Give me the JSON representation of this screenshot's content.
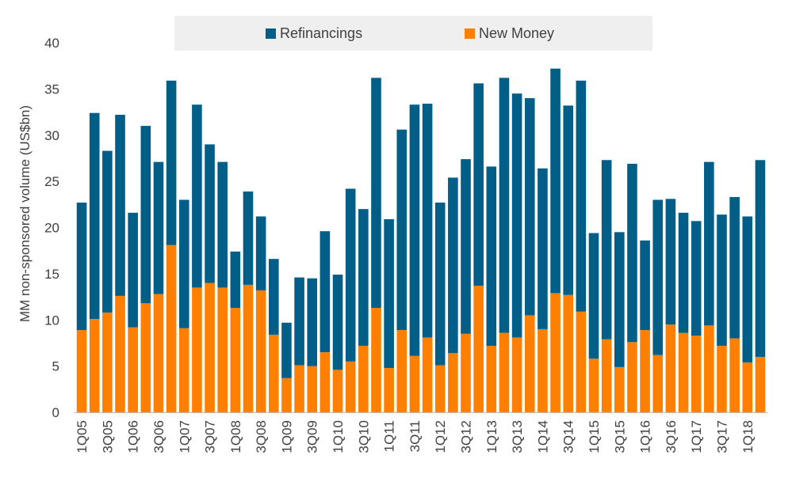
{
  "chart_data": {
    "type": "bar",
    "stacked": true,
    "ylabel": "MM  non-sponsored volume (US$bn)",
    "ylim": [
      0,
      40
    ],
    "yticks": [
      0,
      5,
      10,
      15,
      20,
      25,
      30,
      35,
      40
    ],
    "grid": false,
    "legend_position": "top",
    "categories": [
      "1Q05",
      "2Q05",
      "3Q05",
      "4Q05",
      "1Q06",
      "2Q06",
      "3Q06",
      "4Q06",
      "1Q07",
      "2Q07",
      "3Q07",
      "4Q07",
      "1Q08",
      "2Q08",
      "3Q08",
      "4Q08",
      "1Q09",
      "2Q09",
      "3Q09",
      "4Q09",
      "1Q10",
      "2Q10",
      "3Q10",
      "4Q10",
      "1Q11",
      "2Q11",
      "3Q11",
      "4Q11",
      "1Q12",
      "2Q12",
      "3Q12",
      "4Q12",
      "1Q13",
      "2Q13",
      "3Q13",
      "4Q13",
      "1Q14",
      "2Q14",
      "3Q14",
      "4Q14",
      "1Q15",
      "2Q15",
      "3Q15",
      "4Q15",
      "1Q16",
      "2Q16",
      "3Q16",
      "4Q16",
      "1Q17",
      "2Q17",
      "3Q17",
      "4Q17",
      "1Q18",
      "2Q18"
    ],
    "x_tick_labels": [
      "1Q05",
      "",
      "3Q05",
      "",
      "1Q06",
      "",
      "3Q06",
      "",
      "1Q07",
      "",
      "3Q07",
      "",
      "1Q08",
      "",
      "3Q08",
      "",
      "1Q09",
      "",
      "3Q09",
      "",
      "1Q10",
      "",
      "3Q10",
      "",
      "1Q11",
      "",
      "3Q11",
      "",
      "1Q12",
      "",
      "3Q12",
      "",
      "1Q13",
      "",
      "3Q13",
      "",
      "1Q14",
      "",
      "3Q14",
      "",
      "1Q15",
      "",
      "3Q15",
      "",
      "1Q16",
      "",
      "3Q16",
      "",
      "1Q17",
      "",
      "3Q17",
      "",
      "1Q18",
      ""
    ],
    "series": [
      {
        "name": "New Money",
        "color": "#FF8000",
        "values": [
          8.9,
          10.1,
          10.8,
          12.6,
          9.2,
          11.8,
          12.8,
          18.1,
          9.1,
          13.5,
          14.0,
          13.5,
          11.3,
          13.8,
          13.2,
          8.4,
          3.7,
          5.1,
          5.0,
          6.5,
          4.6,
          5.5,
          7.2,
          11.3,
          4.8,
          8.9,
          6.1,
          8.1,
          5.1,
          6.4,
          8.5,
          13.7,
          7.2,
          8.6,
          8.1,
          10.5,
          9.0,
          12.9,
          12.7,
          10.9,
          5.8,
          7.9,
          4.9,
          7.6,
          8.9,
          6.2,
          9.5,
          8.6,
          8.3,
          9.4,
          7.2,
          8.0,
          5.4,
          6.0
        ]
      },
      {
        "name": "Refinancings",
        "color": "#005E87",
        "values": [
          13.8,
          22.3,
          17.5,
          19.6,
          12.4,
          19.2,
          14.3,
          17.8,
          13.9,
          19.8,
          15.0,
          13.6,
          6.1,
          10.1,
          8.0,
          8.2,
          6.0,
          9.5,
          9.5,
          13.1,
          10.3,
          18.7,
          14.8,
          24.9,
          16.1,
          21.7,
          27.2,
          25.3,
          17.6,
          19.0,
          18.9,
          21.9,
          19.4,
          27.6,
          26.4,
          23.5,
          17.4,
          24.3,
          20.5,
          25.0,
          13.6,
          19.4,
          14.6,
          19.3,
          9.7,
          16.8,
          13.6,
          13.0,
          12.4,
          17.7,
          14.2,
          15.3,
          15.8,
          21.3
        ]
      }
    ]
  }
}
